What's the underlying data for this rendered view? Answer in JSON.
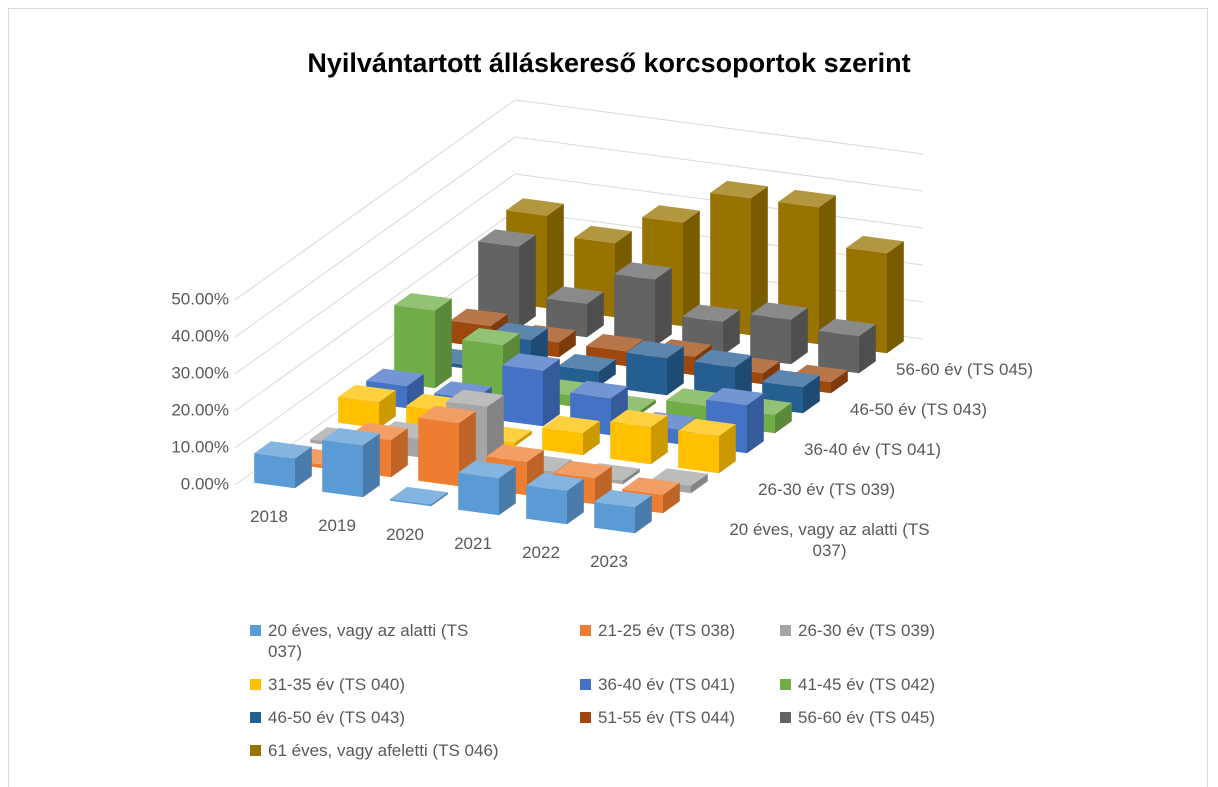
{
  "chart_data": {
    "type": "bar3d",
    "title": "Nyilvántartott álláskereső korcsoportok szerint",
    "categories": [
      "2018",
      "2019",
      "2020",
      "2021",
      "2022",
      "2023"
    ],
    "series": [
      {
        "name": "20 éves, vagy az alatti (TS 037)",
        "color": "#5b9bd5",
        "values": [
          8,
          14,
          0.5,
          10,
          9,
          7
        ]
      },
      {
        "name": "21-25 év (TS 038)",
        "color": "#ed7d31",
        "values": [
          1,
          10,
          17,
          9,
          7,
          5
        ]
      },
      {
        "name": "26-30 év (TS 039)",
        "color": "#a5a5a5",
        "values": [
          1,
          5,
          16,
          1,
          1,
          2
        ]
      },
      {
        "name": "31-35 év (TS 040)",
        "color": "#ffc000",
        "values": [
          7,
          7,
          1,
          6,
          10,
          10
        ]
      },
      {
        "name": "36-40 év (TS 041)",
        "color": "#4472c4",
        "values": [
          6,
          5,
          15,
          10,
          4,
          13
        ]
      },
      {
        "name": "41-45 év (TS 042)",
        "color": "#70ad47",
        "values": [
          21,
          14,
          3,
          1,
          5,
          5
        ]
      },
      {
        "name": "46-50 év (TS 043)",
        "color": "#255e91",
        "values": [
          1,
          10,
          4,
          10,
          10,
          7
        ]
      },
      {
        "name": "51-55 év (TS 044)",
        "color": "#9e480e",
        "values": [
          6,
          4,
          4,
          5,
          3,
          3
        ]
      },
      {
        "name": "56-60 év (TS 045)",
        "color": "#636363",
        "values": [
          22,
          9,
          18,
          9,
          12,
          10
        ]
      },
      {
        "name": "61 éves, vagy afeletti (TS 046)",
        "color": "#997300",
        "values": [
          25,
          20,
          28,
          37,
          37,
          27
        ]
      }
    ],
    "depth_labels": [
      0,
      2,
      4,
      6,
      8
    ],
    "ylim": [
      0,
      50
    ],
    "yticks": [
      {
        "value": 0,
        "label": "0.00%"
      },
      {
        "value": 10,
        "label": "10.00%"
      },
      {
        "value": 20,
        "label": "20.00%"
      },
      {
        "value": 30,
        "label": "30.00%"
      },
      {
        "value": 40,
        "label": "40.00%"
      },
      {
        "value": 50,
        "label": "50.00%"
      }
    ],
    "grid": true,
    "legend": "bottom"
  }
}
